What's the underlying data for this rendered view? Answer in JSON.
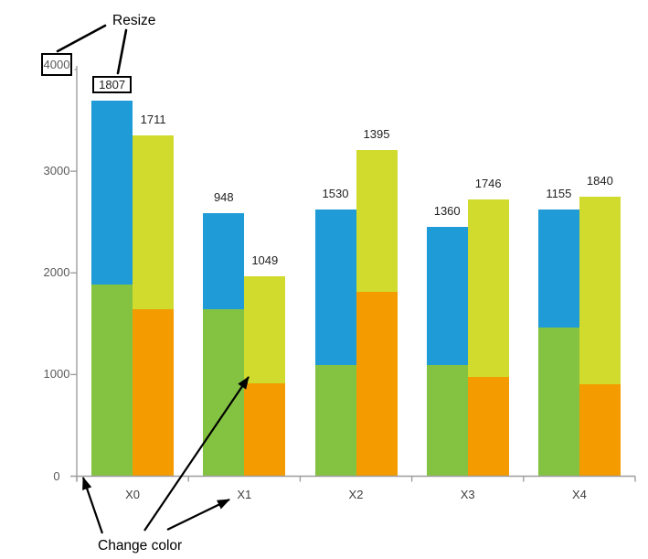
{
  "annotations": {
    "resize_label": "Resize",
    "change_color_label": "Change color"
  },
  "chart_data": {
    "type": "bar",
    "variant": "grouped-stacked-columns",
    "title": "",
    "xlabel": "",
    "ylabel": "",
    "grid": false,
    "legend": "none",
    "categories": [
      "X0",
      "X1",
      "X2",
      "X3",
      "X4"
    ],
    "ylim": [
      0,
      4000
    ],
    "yticks": [
      0,
      1000,
      2000,
      3000,
      4000
    ],
    "stacks": [
      {
        "name": "left-column",
        "segments": [
          {
            "name": "green",
            "color": "#84C341",
            "values": [
              1884,
              1638,
              1094,
              1089,
              1466
            ]
          },
          {
            "name": "blue",
            "color": "#1F9BD7",
            "values": [
              1807,
              948,
              1530,
              1360,
              1155
            ]
          }
        ]
      },
      {
        "name": "right-column",
        "segments": [
          {
            "name": "orange",
            "color": "#F49B00",
            "values": [
              1643,
              917,
              1809,
              978,
              906
            ]
          },
          {
            "name": "yellow",
            "color": "#D0DB2E",
            "values": [
              1711,
              1049,
              1395,
              1746,
              1840
            ]
          }
        ]
      }
    ],
    "boxed_ytick": 4000,
    "boxed_bar_label": {
      "stack": 0,
      "segment": 1,
      "category": 0
    },
    "colors": {
      "axis": "#9E9E9E",
      "tick_label": "#595959",
      "category_label": "#3F3F3F",
      "value_label": "#212121",
      "annotation": "#000000"
    }
  }
}
